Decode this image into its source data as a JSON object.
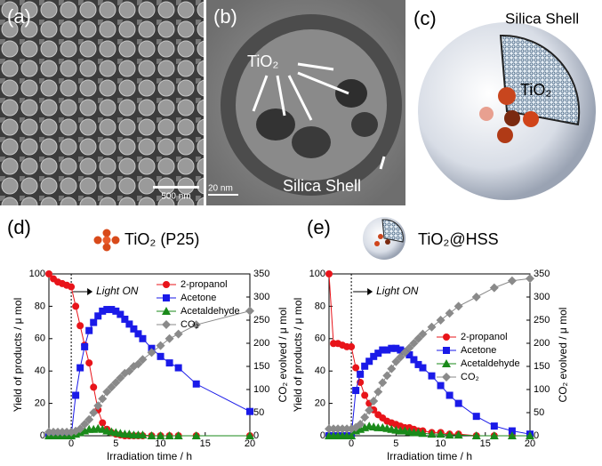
{
  "images": [
    {
      "label": "(a)",
      "scale_bar": "500 nm"
    },
    {
      "label": "(b)",
      "annotations": [
        "TiO₂",
        "Silica Shell"
      ],
      "scale_bar": "20 nm"
    },
    {
      "label": "(c)",
      "annotations": [
        "Silica Shell",
        "TiO₂"
      ]
    }
  ],
  "chart_data": [
    {
      "type": "line",
      "label": "(d)",
      "title": "TiO₂ (P25)",
      "xlabel": "Irradiation time / h",
      "ylabel": "Yield of products / μ mol",
      "y2label": "CO₂ evolved / μ mol",
      "x": [
        -2.5,
        -2,
        -1.5,
        -1,
        -0.5,
        0,
        0.5,
        1,
        1.5,
        2,
        2.5,
        3,
        3.5,
        4,
        4.5,
        5,
        5.5,
        6,
        6.5,
        7,
        7.5,
        8,
        9,
        10,
        11,
        12,
        14,
        20
      ],
      "xlim": [
        -2.5,
        20
      ],
      "xticks": [
        0,
        5,
        10,
        15,
        20
      ],
      "ylim": [
        0,
        100
      ],
      "yticks": [
        0,
        20,
        40,
        60,
        80,
        100
      ],
      "y2lim": [
        0,
        350
      ],
      "y2ticks": [
        0,
        50,
        100,
        150,
        200,
        250,
        300,
        350
      ],
      "legend": "upper right",
      "annotations": [
        {
          "text": "Light ON",
          "x": 0
        }
      ],
      "series": [
        {
          "name": "2-propanol",
          "color": "#e8141a",
          "marker": "circle",
          "values": [
            100,
            97,
            95,
            94,
            93,
            92,
            80,
            68,
            56,
            45,
            30,
            16,
            8,
            4,
            2,
            1,
            0.5,
            0,
            0,
            0,
            0,
            0,
            0,
            0,
            0,
            0,
            0,
            0
          ]
        },
        {
          "name": "Acetone",
          "color": "#1a1ae8",
          "marker": "square",
          "values": [
            0,
            0,
            0,
            0,
            0,
            0,
            25,
            42,
            55,
            65,
            70,
            74,
            77,
            78,
            78,
            77,
            75,
            72,
            69,
            66,
            63,
            60,
            54,
            49,
            45,
            42,
            32,
            15
          ]
        },
        {
          "name": "Acetaldehyde",
          "color": "#1a8a1a",
          "marker": "triangle",
          "values": [
            0,
            0,
            0,
            0,
            0,
            0,
            1,
            2,
            3,
            4,
            4,
            4.5,
            4,
            3,
            2.5,
            2,
            1.5,
            1,
            1,
            0.5,
            0.5,
            0.5,
            0,
            0,
            0,
            0,
            0,
            0
          ]
        },
        {
          "name": "CO₂",
          "color": "#8a8a8a",
          "marker": "diamond",
          "axis": "y2",
          "values": [
            8,
            8,
            8,
            8,
            8,
            8,
            10,
            15,
            25,
            35,
            50,
            65,
            80,
            95,
            105,
            115,
            125,
            135,
            140,
            150,
            155,
            165,
            180,
            195,
            210,
            220,
            240,
            270
          ]
        }
      ]
    },
    {
      "type": "line",
      "label": "(e)",
      "title": "TiO₂@HSS",
      "xlabel": "Irradiation time / h",
      "ylabel": "Yield of products / μ mol",
      "y2label": "CO₂ evolved / μ mol",
      "x": [
        -2.5,
        -2,
        -1.5,
        -1,
        -0.5,
        0,
        0.5,
        1,
        1.5,
        2,
        2.5,
        3,
        3.5,
        4,
        4.5,
        5,
        5.5,
        6,
        6.5,
        7,
        7.5,
        8,
        9,
        10,
        11,
        12,
        14,
        16,
        18,
        20
      ],
      "xlim": [
        -2.5,
        20
      ],
      "xticks": [
        0,
        5,
        10,
        15,
        20
      ],
      "ylim": [
        0,
        100
      ],
      "yticks": [
        0,
        20,
        40,
        60,
        80,
        100
      ],
      "y2lim": [
        0,
        350
      ],
      "y2ticks": [
        0,
        50,
        100,
        150,
        200,
        250,
        300,
        350
      ],
      "legend": "center right",
      "annotations": [
        {
          "text": "Light ON",
          "x": 0
        }
      ],
      "series": [
        {
          "name": "2-propanol",
          "color": "#e8141a",
          "marker": "circle",
          "values": [
            100,
            57,
            57,
            56,
            55,
            55,
            42,
            33,
            25,
            20,
            16,
            13,
            11,
            9,
            8,
            7,
            6,
            5,
            5,
            4,
            3,
            3,
            2,
            2,
            1,
            1,
            0,
            0,
            0,
            0
          ]
        },
        {
          "name": "Acetone",
          "color": "#1a1ae8",
          "marker": "square",
          "values": [
            0,
            0,
            0,
            0,
            0,
            0,
            28,
            38,
            43,
            46,
            49,
            51,
            53,
            53,
            54,
            54,
            53,
            52,
            50,
            47,
            44,
            42,
            37,
            31,
            25,
            20,
            12,
            6,
            3,
            1
          ]
        },
        {
          "name": "Acetaldehyde",
          "color": "#1a8a1a",
          "marker": "triangle",
          "values": [
            0,
            0,
            0,
            0,
            0,
            0,
            3,
            4,
            5,
            6,
            5.5,
            5,
            5,
            4.5,
            4,
            3.5,
            3,
            3,
            2.5,
            2,
            2,
            1.5,
            1,
            1,
            0.5,
            0.5,
            0,
            0,
            0,
            0
          ]
        },
        {
          "name": "CO₂",
          "color": "#8a8a8a",
          "marker": "diamond",
          "axis": "y2",
          "values": [
            15,
            15,
            15,
            15,
            15,
            15,
            18,
            25,
            40,
            55,
            75,
            95,
            115,
            130,
            145,
            160,
            170,
            180,
            190,
            200,
            210,
            220,
            235,
            250,
            265,
            280,
            300,
            320,
            335,
            340
          ]
        }
      ]
    }
  ]
}
